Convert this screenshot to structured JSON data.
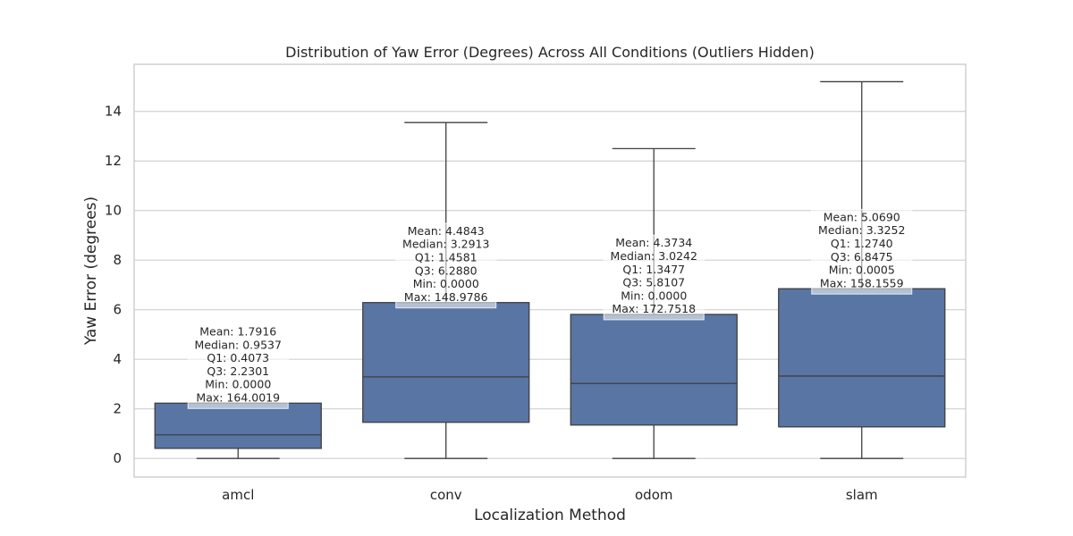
{
  "chart_data": {
    "type": "box",
    "title": "Distribution of Yaw Error (Degrees) Across All Conditions (Outliers Hidden)",
    "xlabel": "Localization Method",
    "ylabel": "Yaw Error (degrees)",
    "ylim": [
      -0.75,
      15.9
    ],
    "yticks": [
      0,
      2,
      4,
      6,
      8,
      10,
      12,
      14
    ],
    "grid": true,
    "box_color": "#5875a4",
    "line_color": "#3f3f3f",
    "categories": [
      "amcl",
      "conv",
      "odom",
      "slam"
    ],
    "boxes": [
      {
        "category": "amcl",
        "whisker_low": 0.0,
        "q1": 0.4073,
        "median": 0.9537,
        "q3": 2.2301,
        "whisker_high": 2.2301,
        "annotation": [
          "Mean: 1.7916",
          "Median: 0.9537",
          "Q1: 0.4073",
          "Q3: 2.2301",
          "Min: 0.0000",
          "Max: 164.0019"
        ]
      },
      {
        "category": "conv",
        "whisker_low": 0.0,
        "q1": 1.4581,
        "median": 3.2913,
        "q3": 6.288,
        "whisker_high": 13.55,
        "annotation": [
          "Mean: 4.4843",
          "Median: 3.2913",
          "Q1: 1.4581",
          "Q3: 6.2880",
          "Min: 0.0000",
          "Max: 148.9786"
        ]
      },
      {
        "category": "odom",
        "whisker_low": 0.0,
        "q1": 1.3477,
        "median": 3.0242,
        "q3": 5.8107,
        "whisker_high": 12.5,
        "annotation": [
          "Mean: 4.3734",
          "Median: 3.0242",
          "Q1: 1.3477",
          "Q3: 5.8107",
          "Min: 0.0000",
          "Max: 172.7518"
        ]
      },
      {
        "category": "slam",
        "whisker_low": 0.0005,
        "q1": 1.274,
        "median": 3.3252,
        "q3": 6.8475,
        "whisker_high": 15.2,
        "annotation": [
          "Mean: 5.0690",
          "Median: 3.3252",
          "Q1: 1.2740",
          "Q3: 6.8475",
          "Min: 0.0005",
          "Max: 158.1559"
        ]
      }
    ]
  }
}
